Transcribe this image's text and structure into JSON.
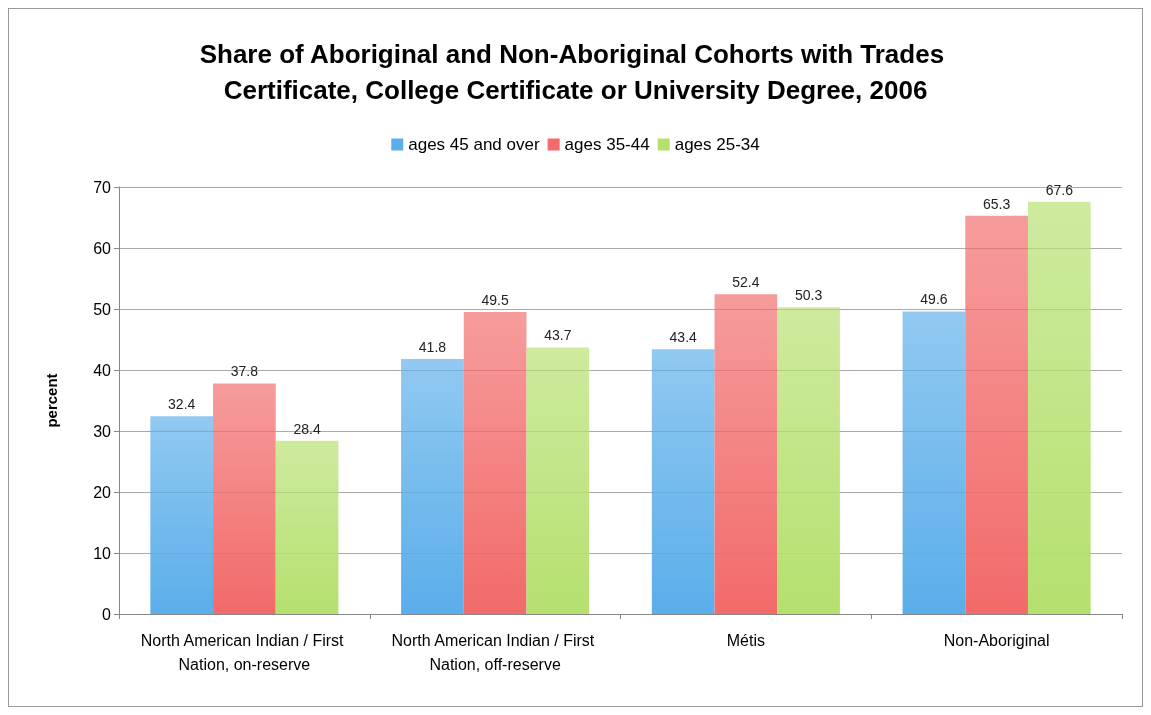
{
  "chart_data": {
    "type": "bar",
    "title": "Share of Aboriginal and Non-Aboriginal Cohorts with Trades Certificate, College Certificate or University Degree, 2006",
    "ylabel": "percent",
    "categories": [
      "North American Indian / First Nation, on-reserve",
      "North American Indian / First Nation, off-reserve",
      "Métis",
      "Non-Aboriginal"
    ],
    "series": [
      {
        "name": "ages 45 and over",
        "color": "#5aaeea",
        "values": [
          32.4,
          41.8,
          43.4,
          49.6
        ]
      },
      {
        "name": "ages 35-44",
        "color": "#f26a6a",
        "values": [
          37.8,
          49.5,
          52.4,
          65.3
        ]
      },
      {
        "name": "ages 25-34",
        "color": "#b5e06e",
        "values": [
          28.4,
          43.7,
          50.3,
          67.6
        ]
      }
    ],
    "ylim": [
      0,
      70
    ],
    "yticks": [
      0,
      10,
      20,
      30,
      40,
      50,
      60,
      70
    ],
    "grid": "y",
    "legend": "top",
    "data_labels": true
  }
}
